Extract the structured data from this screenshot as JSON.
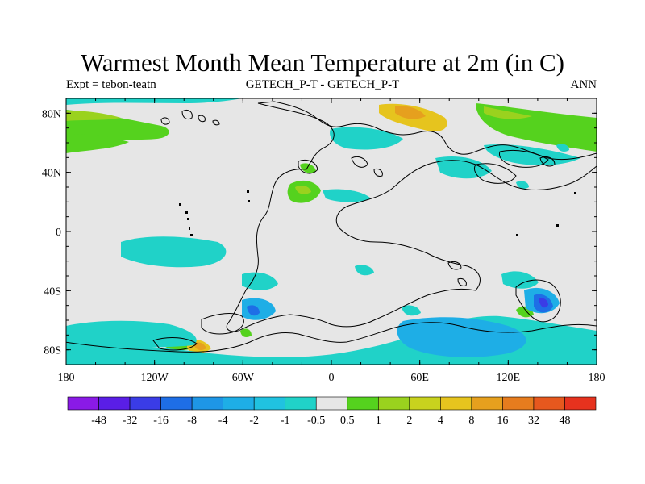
{
  "title": "Warmest Month Mean Temperature at 2m (in C)",
  "subtitle_left": "Expt = tebon-teatn",
  "subtitle_center": "GETECH_P-T - GETECH_P-T",
  "subtitle_right": "ANN",
  "lat_labels": [
    "80N",
    "40N",
    "0",
    "40S",
    "80S"
  ],
  "lat_values": [
    80,
    40,
    0,
    -40,
    -80
  ],
  "lon_labels": [
    "180",
    "120W",
    "60W",
    "0",
    "60E",
    "120E",
    "180"
  ],
  "lon_values": [
    -180,
    -120,
    -60,
    0,
    60,
    120,
    180
  ],
  "colorbar": {
    "labels": [
      "-48",
      "-32",
      "-16",
      "-8",
      "-4",
      "-2",
      "-1",
      "-0.5",
      "0.5",
      "1",
      "2",
      "4",
      "8",
      "16",
      "32",
      "48"
    ],
    "colors": [
      "#8a1ae6",
      "#5a1ee6",
      "#3a3ce6",
      "#1e6ee6",
      "#1e96e6",
      "#1eaee6",
      "#20c2e0",
      "#20d2c8",
      "#e6e6e6",
      "#55d21e",
      "#9ad21e",
      "#c8d21e",
      "#e6c41e",
      "#e6a01e",
      "#e67c1e",
      "#e6581e",
      "#e6321e"
    ]
  },
  "map_colors": {
    "background": "#e6e6e6",
    "neg_small": "#20d2c8",
    "neg_medium": "#1eaee6",
    "neg_large": "#1e6ee6",
    "neg_extreme": "#3a3ce6",
    "pos_small": "#55d21e",
    "pos_medium": "#9ad21e",
    "pos_large": "#e6c41e",
    "pos_extreme": "#e6a01e",
    "coast": "#000000"
  }
}
